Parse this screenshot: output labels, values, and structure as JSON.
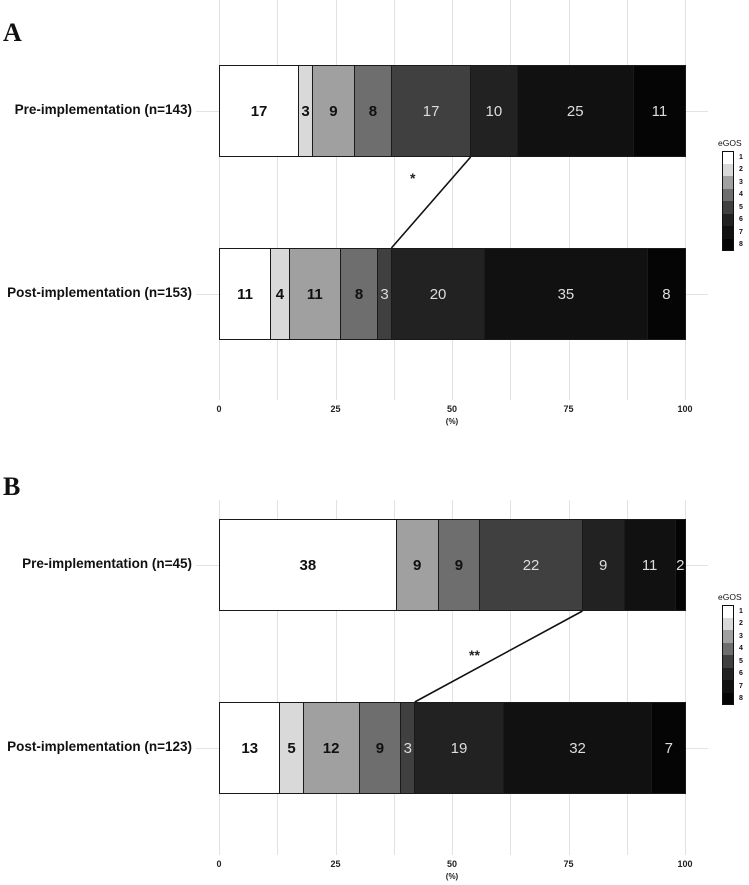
{
  "chart_data": [
    {
      "type": "bar",
      "orientation": "horizontal",
      "stacked": true,
      "panel": "A",
      "categories": [
        "Pre-implementation (n=143)",
        "Post-implementation (n=153)"
      ],
      "series": [
        {
          "name": "1",
          "values": [
            17,
            11
          ]
        },
        {
          "name": "2",
          "values": [
            3,
            4
          ]
        },
        {
          "name": "3",
          "values": [
            9,
            11
          ]
        },
        {
          "name": "4",
          "values": [
            8,
            8
          ]
        },
        {
          "name": "5",
          "values": [
            17,
            3
          ]
        },
        {
          "name": "6",
          "values": [
            10,
            20
          ]
        },
        {
          "name": "7",
          "values": [
            25,
            35
          ]
        },
        {
          "name": "8",
          "values": [
            11,
            8
          ]
        }
      ],
      "xlabel": "(%)",
      "xlim": [
        0,
        100
      ],
      "xticks": [
        "0",
        "25",
        "50",
        "75",
        "100"
      ],
      "legend_title": "eGOS",
      "legend_position": "right",
      "grid": true,
      "annotation": "*"
    },
    {
      "type": "bar",
      "orientation": "horizontal",
      "stacked": true,
      "panel": "B",
      "categories": [
        "Pre-implementation (n=45)",
        "Post-implementation (n=123)"
      ],
      "series": [
        {
          "name": "1",
          "values": [
            38,
            13
          ]
        },
        {
          "name": "2",
          "values": [
            0,
            5
          ]
        },
        {
          "name": "3",
          "values": [
            9,
            12
          ]
        },
        {
          "name": "4",
          "values": [
            9,
            9
          ]
        },
        {
          "name": "5",
          "values": [
            22,
            3
          ]
        },
        {
          "name": "6",
          "values": [
            9,
            19
          ]
        },
        {
          "name": "7",
          "values": [
            11,
            32
          ]
        },
        {
          "name": "8",
          "values": [
            2,
            7
          ]
        }
      ],
      "xlabel": "(%)",
      "xlim": [
        0,
        100
      ],
      "xticks": [
        "0",
        "25",
        "50",
        "75",
        "100"
      ],
      "legend_title": "eGOS",
      "legend_position": "right",
      "grid": true,
      "annotation": "**"
    }
  ],
  "colors": {
    "1": "#ffffff",
    "2": "#d9d9d9",
    "3": "#a0a0a0",
    "4": "#6e6e6e",
    "5": "#404040",
    "6": "#222222",
    "7": "#111111",
    "8": "#050505"
  },
  "panels": [
    {
      "letter": "A",
      "pre_label": "Pre-implementation (n=143)",
      "post_label": "Post-implementation (n=153)",
      "sig": "*",
      "xlabel": "(%)",
      "legend_title": "eGOS"
    },
    {
      "letter": "B",
      "pre_label": "Pre-implementation (n=45)",
      "post_label": "Post-implementation (n=123)",
      "sig": "**",
      "xlabel": "(%)",
      "legend_title": "eGOS"
    }
  ],
  "legend_levels": [
    "1",
    "2",
    "3",
    "4",
    "5",
    "6",
    "7",
    "8"
  ],
  "xticks": [
    "0",
    "25",
    "50",
    "75",
    "100"
  ]
}
